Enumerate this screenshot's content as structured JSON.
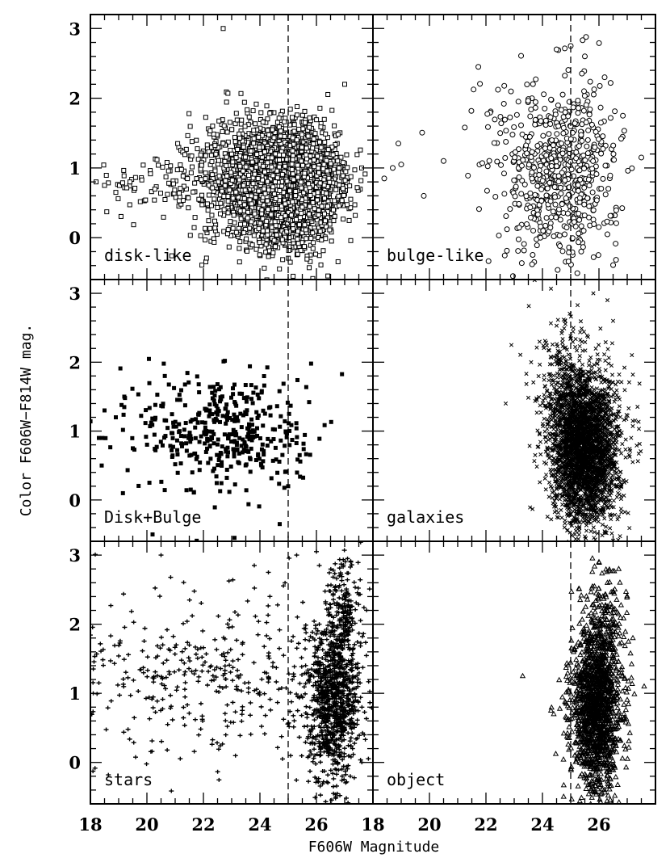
{
  "chart_data": {
    "type": "scatter",
    "xlabel": "F606W Magnitude",
    "ylabel": "Color F606W−F814W mag.",
    "xlim": [
      18,
      28
    ],
    "ylim": [
      -0.6,
      3.2
    ],
    "x_ticks": [
      "18",
      "20",
      "22",
      "24",
      "26"
    ],
    "y_ticks": [
      "0",
      "1",
      "2",
      "3"
    ],
    "magnitude_cut": 25,
    "layout": "3 rows x 2 columns, shared axes",
    "panels": [
      {
        "label": "disk-like",
        "marker": "open-square",
        "clusters": [
          {
            "x_center": 25.0,
            "x_spread": 0.85,
            "y_center": 0.75,
            "y_spread": 0.38,
            "n": 3400
          },
          {
            "x_center": 23.5,
            "x_spread": 1.1,
            "y_center": 0.85,
            "y_spread": 0.45,
            "n": 650
          },
          {
            "x_center": 20.8,
            "x_spread": 1.3,
            "y_center": 0.75,
            "y_spread": 0.2,
            "n": 70
          }
        ],
        "points": [
          [
            18.2,
            0.8
          ],
          [
            18.5,
            0.75
          ],
          [
            18.9,
            0.65
          ],
          [
            19.4,
            0.8
          ],
          [
            26.6,
            0.4
          ],
          [
            26.8,
            1.0
          ],
          [
            27.6,
            1.0
          ],
          [
            27.0,
            2.2
          ],
          [
            22.7,
            3.0
          ]
        ]
      },
      {
        "label": "bulge-like",
        "marker": "open-circle",
        "clusters": [
          {
            "x_center": 24.7,
            "x_spread": 1.0,
            "y_center": 0.85,
            "y_spread": 0.6,
            "n": 520
          },
          {
            "x_center": 23.8,
            "x_spread": 1.3,
            "y_center": 1.5,
            "y_spread": 0.5,
            "n": 120
          }
        ],
        "points": [
          [
            18.4,
            0.85
          ],
          [
            18.7,
            1.0
          ],
          [
            19.0,
            1.05
          ],
          [
            18.9,
            1.35
          ],
          [
            19.8,
            0.6
          ],
          [
            20.5,
            1.1
          ],
          [
            27.5,
            1.15
          ],
          [
            26.2,
            2.3
          ],
          [
            24.5,
            2.7
          ],
          [
            25.0,
            2.75
          ],
          [
            25.5,
            2.6
          ]
        ]
      },
      {
        "label": "Disk+Bulge",
        "marker": "filled-square",
        "clusters": [
          {
            "x_center": 22.8,
            "x_spread": 1.5,
            "y_center": 1.0,
            "y_spread": 0.45,
            "n": 420
          }
        ],
        "points": [
          [
            18.3,
            0.9
          ],
          [
            18.4,
            0.5
          ],
          [
            18.5,
            1.3
          ],
          [
            18.9,
            1.2
          ],
          [
            19.2,
            1.5
          ],
          [
            19.5,
            0.75
          ],
          [
            25.0,
            0.2
          ],
          [
            24.7,
            -0.35
          ],
          [
            23.1,
            -0.55
          ],
          [
            20.2,
            -0.5
          ]
        ]
      },
      {
        "label": "galaxies",
        "marker": "cross",
        "clusters": [
          {
            "x_center": 25.5,
            "x_spread": 0.6,
            "y_center": 0.75,
            "y_spread": 0.55,
            "n": 3000
          },
          {
            "x_center": 24.8,
            "x_spread": 0.5,
            "y_center": 1.6,
            "y_spread": 0.5,
            "n": 250
          }
        ],
        "points": [
          [
            22.9,
            2.25
          ],
          [
            22.7,
            1.4
          ],
          [
            23.6,
            2.0
          ],
          [
            23.8,
            1.45
          ],
          [
            26.3,
            2.9
          ],
          [
            25.8,
            3.0
          ],
          [
            26.5,
            2.6
          ]
        ]
      },
      {
        "label": "stars",
        "marker": "plus",
        "clusters": [
          {
            "x_center": 26.6,
            "x_spread": 0.45,
            "y_center": 0.9,
            "y_spread": 0.6,
            "n": 950
          },
          {
            "x_center": 27.0,
            "x_spread": 0.3,
            "y_center": 2.2,
            "y_spread": 0.45,
            "n": 180
          },
          {
            "x_center": 22.5,
            "x_spread": 2.8,
            "y_center": 1.25,
            "y_spread": 0.6,
            "n": 420
          }
        ],
        "points": [
          [
            18.1,
            1.0
          ],
          [
            18.3,
            1.15
          ],
          [
            20.5,
            3.0
          ],
          [
            23.8,
            2.85
          ],
          [
            24.3,
            2.75
          ],
          [
            25.3,
            3.0
          ],
          [
            26.0,
            3.05
          ],
          [
            27.1,
            2.95
          ],
          [
            24.8,
            0.05
          ],
          [
            26.6,
            -0.35
          ],
          [
            27.2,
            -0.2
          ]
        ]
      },
      {
        "label": "object",
        "marker": "triangle",
        "clusters": [
          {
            "x_center": 25.9,
            "x_spread": 0.45,
            "y_center": 0.75,
            "y_spread": 0.6,
            "n": 1400
          },
          {
            "x_center": 26.2,
            "x_spread": 0.35,
            "y_center": 1.9,
            "y_spread": 0.5,
            "n": 200
          }
        ],
        "points": [
          [
            23.3,
            1.25
          ],
          [
            24.3,
            0.75
          ],
          [
            24.4,
            0.7
          ],
          [
            26.3,
            2.6
          ],
          [
            26.7,
            2.8
          ],
          [
            27.2,
            1.8
          ],
          [
            27.6,
            1.1
          ],
          [
            26.0,
            2.9
          ]
        ]
      }
    ]
  }
}
